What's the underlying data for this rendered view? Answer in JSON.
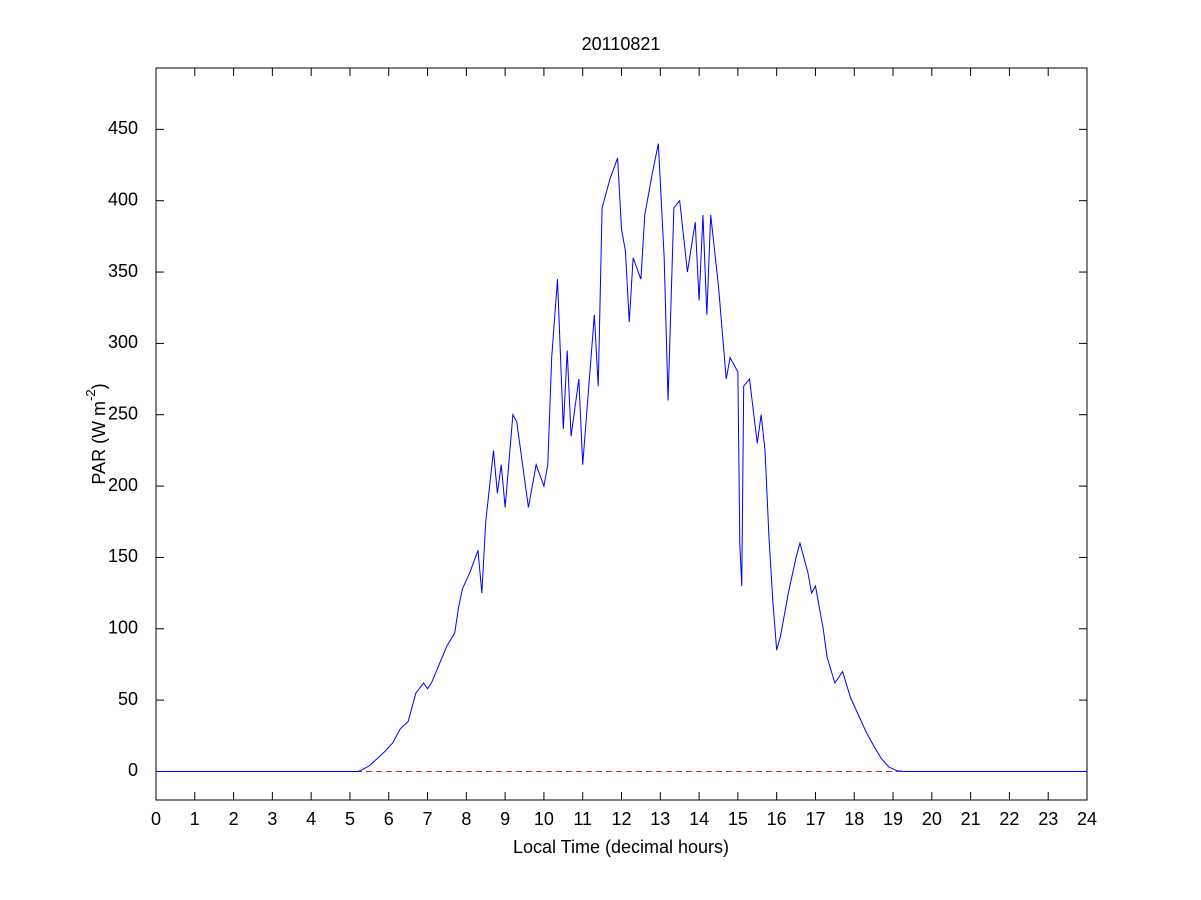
{
  "chart_data": {
    "type": "line",
    "title": "20110821",
    "xlabel": "Local Time (decimal hours)",
    "ylabel": [
      "PAR (W m",
      "-2",
      ")"
    ],
    "xlim": [
      0,
      24
    ],
    "ylim": [
      -20,
      493
    ],
    "xticks": [
      0,
      1,
      2,
      3,
      4,
      5,
      6,
      7,
      8,
      9,
      10,
      11,
      12,
      13,
      14,
      15,
      16,
      17,
      18,
      19,
      20,
      21,
      22,
      23,
      24
    ],
    "yticks": [
      0,
      50,
      100,
      150,
      200,
      250,
      300,
      350,
      400,
      450
    ],
    "reference_line": {
      "value": 0,
      "color": "#d62728"
    },
    "series": [
      {
        "color": "#0000ff",
        "x": [
          0,
          5.2,
          5.3,
          5.5,
          5.7,
          5.9,
          6.1,
          6.3,
          6.5,
          6.7,
          6.9,
          7.0,
          7.1,
          7.3,
          7.5,
          7.7,
          7.8,
          7.9,
          8.1,
          8.3,
          8.4,
          8.5,
          8.7,
          8.8,
          8.9,
          9.0,
          9.2,
          9.3,
          9.5,
          9.6,
          9.8,
          10.0,
          10.1,
          10.2,
          10.35,
          10.5,
          10.6,
          10.7,
          10.9,
          11.0,
          11.1,
          11.3,
          11.4,
          11.5,
          11.7,
          11.9,
          12.0,
          12.1,
          12.2,
          12.3,
          12.5,
          12.6,
          12.8,
          12.95,
          13.1,
          13.2,
          13.35,
          13.5,
          13.7,
          13.9,
          14.0,
          14.1,
          14.2,
          14.3,
          14.5,
          14.7,
          14.8,
          15.0,
          15.05,
          15.1,
          15.15,
          15.3,
          15.5,
          15.6,
          15.7,
          15.8,
          15.9,
          16.0,
          16.1,
          16.3,
          16.5,
          16.6,
          16.8,
          16.9,
          17.0,
          17.2,
          17.3,
          17.5,
          17.7,
          17.9,
          18.1,
          18.3,
          18.5,
          18.7,
          18.9,
          19.1,
          19.3,
          24
        ],
        "values": [
          0,
          0,
          1,
          4,
          9,
          14,
          20,
          30,
          35,
          55,
          62,
          58,
          62,
          75,
          88,
          97,
          115,
          128,
          140,
          155,
          125,
          175,
          225,
          195,
          215,
          185,
          250,
          245,
          205,
          185,
          215,
          200,
          215,
          290,
          345,
          240,
          295,
          235,
          275,
          215,
          250,
          320,
          270,
          395,
          415,
          430,
          380,
          365,
          315,
          360,
          345,
          390,
          420,
          440,
          360,
          260,
          395,
          400,
          350,
          385,
          330,
          390,
          320,
          390,
          340,
          275,
          290,
          280,
          160,
          130,
          270,
          275,
          230,
          250,
          225,
          165,
          120,
          85,
          95,
          125,
          150,
          160,
          140,
          125,
          130,
          100,
          80,
          62,
          70,
          52,
          40,
          28,
          18,
          9,
          3,
          0.5,
          0,
          0
        ]
      }
    ]
  }
}
